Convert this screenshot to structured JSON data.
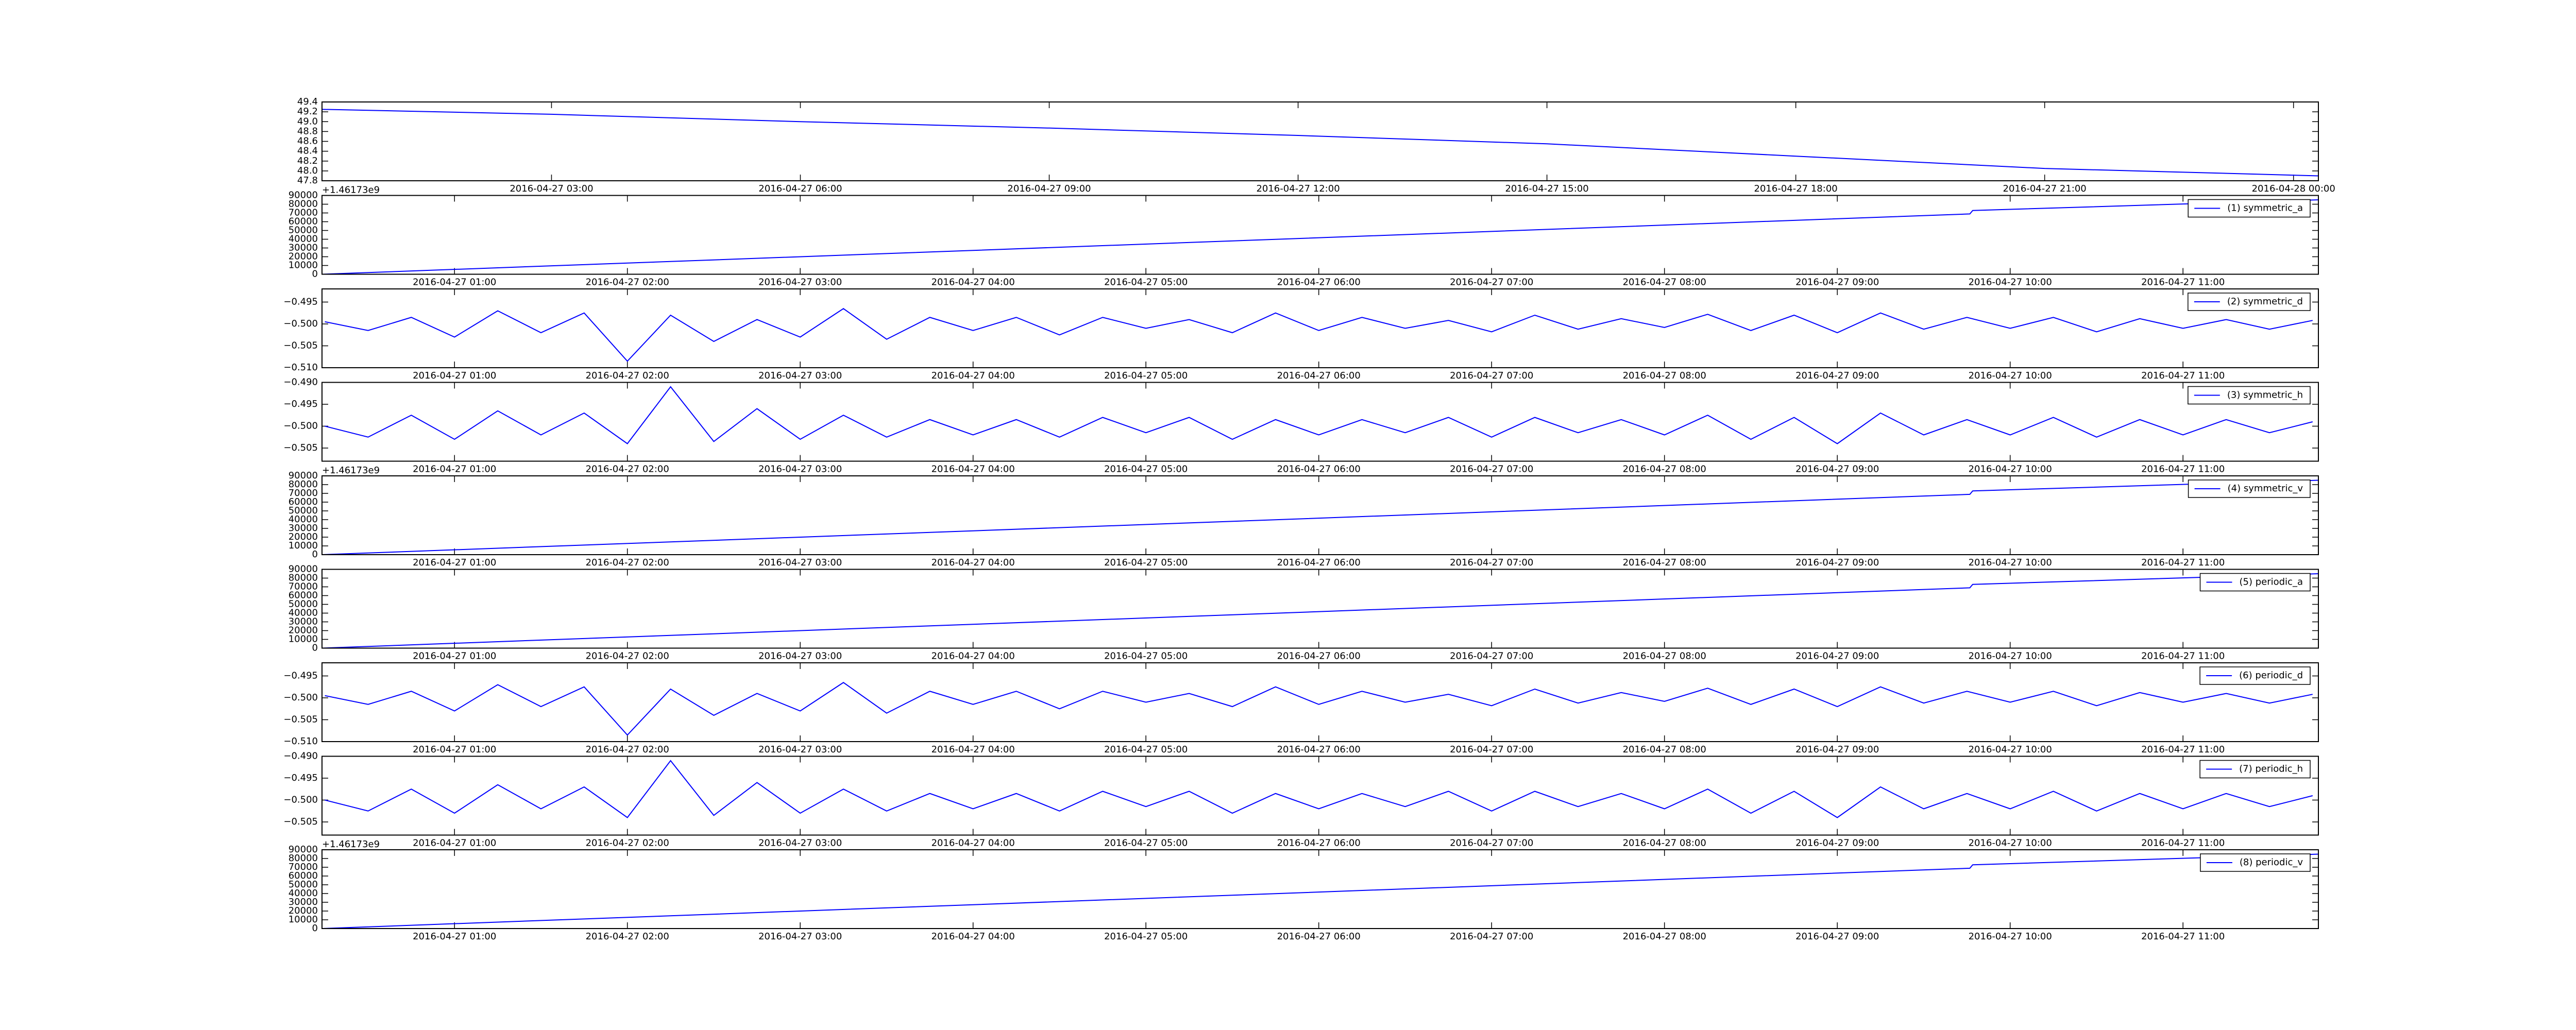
{
  "chart_data": [
    {
      "type": "line",
      "x": [
        "2016-04-27 00:14",
        "2016-04-27 03:00",
        "2016-04-27 06:00",
        "2016-04-27 09:00",
        "2016-04-27 12:00",
        "2016-04-27 15:00",
        "2016-04-27 18:00",
        "2016-04-27 21:00",
        "2016-04-28 00:18"
      ],
      "series": [
        {
          "color": "#0000ff",
          "values": [
            49.25,
            49.15,
            49.0,
            48.87,
            48.72,
            48.55,
            48.3,
            48.05,
            47.9
          ]
        }
      ],
      "xlim": [
        "2016-04-27 00:14",
        "2016-04-28 00:18"
      ],
      "xticks": [
        "2016-04-27 03:00",
        "2016-04-27 06:00",
        "2016-04-27 09:00",
        "2016-04-27 12:00",
        "2016-04-27 15:00",
        "2016-04-27 18:00",
        "2016-04-27 21:00",
        "2016-04-28 00:00"
      ],
      "ylim": [
        47.8,
        49.4
      ],
      "yticks": [
        47.8,
        {
          "value": 48.0,
          "label": "48.0"
        },
        48.2,
        48.4,
        48.6,
        48.8,
        {
          "value": 49.0,
          "label": "49.0"
        },
        49.2,
        49.4
      ]
    },
    {
      "type": "line",
      "x": [
        "2016-04-27 00:14",
        "2016-04-27 09:46",
        "2016-04-27 09:47",
        "2016-04-27 11:47"
      ],
      "series": [
        {
          "name": "(1) symmetric_a",
          "color": "#0000ff",
          "values": [
            0,
            68900,
            72800,
            85000
          ]
        }
      ],
      "xlim": [
        "2016-04-27 00:14",
        "2016-04-27 11:47"
      ],
      "xticks": [
        "2016-04-27 01:00",
        "2016-04-27 02:00",
        "2016-04-27 03:00",
        "2016-04-27 04:00",
        "2016-04-27 05:00",
        "2016-04-27 06:00",
        "2016-04-27 07:00",
        "2016-04-27 08:00",
        "2016-04-27 09:00",
        "2016-04-27 10:00",
        "2016-04-27 11:00"
      ],
      "ylim": [
        0,
        90000
      ],
      "yticks": [
        0,
        10000,
        20000,
        30000,
        40000,
        50000,
        60000,
        70000,
        80000,
        90000
      ],
      "y_offset": "+1.46173e9",
      "legend": "upper right"
    },
    {
      "type": "line",
      "x": [
        "2016-04-27 00:15",
        "2016-04-27 00:30",
        "2016-04-27 00:45",
        "2016-04-27 01:00",
        "2016-04-27 01:15",
        "2016-04-27 01:30",
        "2016-04-27 01:45",
        "2016-04-27 02:00",
        "2016-04-27 02:15",
        "2016-04-27 02:30",
        "2016-04-27 02:45",
        "2016-04-27 03:00",
        "2016-04-27 03:15",
        "2016-04-27 03:30",
        "2016-04-27 03:45",
        "2016-04-27 04:00",
        "2016-04-27 04:15",
        "2016-04-27 04:30",
        "2016-04-27 04:45",
        "2016-04-27 05:00",
        "2016-04-27 05:15",
        "2016-04-27 05:30",
        "2016-04-27 05:45",
        "2016-04-27 06:00",
        "2016-04-27 06:15",
        "2016-04-27 06:30",
        "2016-04-27 06:45",
        "2016-04-27 07:00",
        "2016-04-27 07:15",
        "2016-04-27 07:30",
        "2016-04-27 07:45",
        "2016-04-27 08:00",
        "2016-04-27 08:15",
        "2016-04-27 08:30",
        "2016-04-27 08:45",
        "2016-04-27 09:00",
        "2016-04-27 09:15",
        "2016-04-27 09:30",
        "2016-04-27 09:45",
        "2016-04-27 10:00",
        "2016-04-27 10:15",
        "2016-04-27 10:30",
        "2016-04-27 10:45",
        "2016-04-27 11:00",
        "2016-04-27 11:15",
        "2016-04-27 11:30",
        "2016-04-27 11:45"
      ],
      "series": [
        {
          "name": "(2) symmetric_d",
          "color": "#0000ff",
          "values": [
            -0.4995,
            -0.5015,
            -0.4985,
            -0.503,
            -0.497,
            -0.502,
            -0.4975,
            -0.5085,
            -0.498,
            -0.504,
            -0.499,
            -0.503,
            -0.4965,
            -0.5035,
            -0.4985,
            -0.5015,
            -0.4985,
            -0.5025,
            -0.4985,
            -0.501,
            -0.499,
            -0.502,
            -0.4975,
            -0.5015,
            -0.4985,
            -0.501,
            -0.4992,
            -0.5018,
            -0.498,
            -0.5012,
            -0.4988,
            -0.5008,
            -0.4978,
            -0.5015,
            -0.498,
            -0.502,
            -0.4975,
            -0.5012,
            -0.4985,
            -0.501,
            -0.4985,
            -0.5018,
            -0.4988,
            -0.501,
            -0.499,
            -0.5012,
            -0.4992
          ]
        }
      ],
      "xlim": [
        "2016-04-27 00:14",
        "2016-04-27 11:47"
      ],
      "xticks": [
        "2016-04-27 01:00",
        "2016-04-27 02:00",
        "2016-04-27 03:00",
        "2016-04-27 04:00",
        "2016-04-27 05:00",
        "2016-04-27 06:00",
        "2016-04-27 07:00",
        "2016-04-27 08:00",
        "2016-04-27 09:00",
        "2016-04-27 10:00",
        "2016-04-27 11:00"
      ],
      "ylim": [
        -0.51,
        -0.492
      ],
      "yticks": [
        {
          "value": -0.51,
          "label": "−0.510"
        },
        {
          "value": -0.505,
          "label": "−0.505"
        },
        {
          "value": -0.5,
          "label": "−0.500"
        },
        {
          "value": -0.495,
          "label": "−0.495"
        }
      ],
      "legend": "upper right"
    },
    {
      "type": "line",
      "x": [
        "2016-04-27 00:15",
        "2016-04-27 00:30",
        "2016-04-27 00:45",
        "2016-04-27 01:00",
        "2016-04-27 01:15",
        "2016-04-27 01:30",
        "2016-04-27 01:45",
        "2016-04-27 02:00",
        "2016-04-27 02:15",
        "2016-04-27 02:30",
        "2016-04-27 02:45",
        "2016-04-27 03:00",
        "2016-04-27 03:15",
        "2016-04-27 03:30",
        "2016-04-27 03:45",
        "2016-04-27 04:00",
        "2016-04-27 04:15",
        "2016-04-27 04:30",
        "2016-04-27 04:45",
        "2016-04-27 05:00",
        "2016-04-27 05:15",
        "2016-04-27 05:30",
        "2016-04-27 05:45",
        "2016-04-27 06:00",
        "2016-04-27 06:15",
        "2016-04-27 06:30",
        "2016-04-27 06:45",
        "2016-04-27 07:00",
        "2016-04-27 07:15",
        "2016-04-27 07:30",
        "2016-04-27 07:45",
        "2016-04-27 08:00",
        "2016-04-27 08:15",
        "2016-04-27 08:30",
        "2016-04-27 08:45",
        "2016-04-27 09:00",
        "2016-04-27 09:15",
        "2016-04-27 09:30",
        "2016-04-27 09:45",
        "2016-04-27 10:00",
        "2016-04-27 10:15",
        "2016-04-27 10:30",
        "2016-04-27 10:45",
        "2016-04-27 11:00",
        "2016-04-27 11:15",
        "2016-04-27 11:30",
        "2016-04-27 11:45"
      ],
      "series": [
        {
          "name": "(3) symmetric_h",
          "color": "#0000ff",
          "values": [
            -0.5,
            -0.5025,
            -0.4975,
            -0.503,
            -0.4965,
            -0.502,
            -0.497,
            -0.504,
            -0.491,
            -0.5035,
            -0.496,
            -0.503,
            -0.4975,
            -0.5025,
            -0.4985,
            -0.502,
            -0.4985,
            -0.5025,
            -0.498,
            -0.5015,
            -0.498,
            -0.503,
            -0.4985,
            -0.502,
            -0.4985,
            -0.5015,
            -0.498,
            -0.5025,
            -0.498,
            -0.5015,
            -0.4985,
            -0.502,
            -0.4975,
            -0.503,
            -0.498,
            -0.504,
            -0.497,
            -0.502,
            -0.4985,
            -0.502,
            -0.498,
            -0.5025,
            -0.4985,
            -0.502,
            -0.4985,
            -0.5015,
            -0.499
          ]
        }
      ],
      "xlim": [
        "2016-04-27 00:14",
        "2016-04-27 11:47"
      ],
      "xticks": [
        "2016-04-27 01:00",
        "2016-04-27 02:00",
        "2016-04-27 03:00",
        "2016-04-27 04:00",
        "2016-04-27 05:00",
        "2016-04-27 06:00",
        "2016-04-27 07:00",
        "2016-04-27 08:00",
        "2016-04-27 09:00",
        "2016-04-27 10:00",
        "2016-04-27 11:00"
      ],
      "ylim": [
        -0.508,
        -0.49
      ],
      "yticks": [
        {
          "value": -0.505,
          "label": "−0.505"
        },
        {
          "value": -0.5,
          "label": "−0.500"
        },
        {
          "value": -0.495,
          "label": "−0.495"
        },
        {
          "value": -0.49,
          "label": "−0.490"
        }
      ],
      "legend": "upper right"
    },
    {
      "type": "line",
      "x": [
        "2016-04-27 00:14",
        "2016-04-27 09:46",
        "2016-04-27 09:47",
        "2016-04-27 11:47"
      ],
      "series": [
        {
          "name": "(4) symmetric_v",
          "color": "#0000ff",
          "values": [
            0,
            68900,
            72800,
            85000
          ]
        }
      ],
      "xlim": [
        "2016-04-27 00:14",
        "2016-04-27 11:47"
      ],
      "xticks": [
        "2016-04-27 01:00",
        "2016-04-27 02:00",
        "2016-04-27 03:00",
        "2016-04-27 04:00",
        "2016-04-27 05:00",
        "2016-04-27 06:00",
        "2016-04-27 07:00",
        "2016-04-27 08:00",
        "2016-04-27 09:00",
        "2016-04-27 10:00",
        "2016-04-27 11:00"
      ],
      "ylim": [
        0,
        90000
      ],
      "yticks": [
        0,
        10000,
        20000,
        30000,
        40000,
        50000,
        60000,
        70000,
        80000,
        90000
      ],
      "y_offset": "+1.46173e9",
      "legend": "upper right"
    },
    {
      "type": "line",
      "x": [
        "2016-04-27 00:14",
        "2016-04-27 09:46",
        "2016-04-27 09:47",
        "2016-04-27 11:47"
      ],
      "series": [
        {
          "name": "(5) periodic_a",
          "color": "#0000ff",
          "values": [
            0,
            68900,
            72800,
            85000
          ]
        }
      ],
      "xlim": [
        "2016-04-27 00:14",
        "2016-04-27 11:47"
      ],
      "xticks": [
        "2016-04-27 01:00",
        "2016-04-27 02:00",
        "2016-04-27 03:00",
        "2016-04-27 04:00",
        "2016-04-27 05:00",
        "2016-04-27 06:00",
        "2016-04-27 07:00",
        "2016-04-27 08:00",
        "2016-04-27 09:00",
        "2016-04-27 10:00",
        "2016-04-27 11:00"
      ],
      "ylim": [
        0,
        90000
      ],
      "yticks": [
        0,
        10000,
        20000,
        30000,
        40000,
        50000,
        60000,
        70000,
        80000,
        90000
      ],
      "legend": "upper right"
    },
    {
      "type": "line",
      "x": [
        "2016-04-27 00:15",
        "2016-04-27 00:30",
        "2016-04-27 00:45",
        "2016-04-27 01:00",
        "2016-04-27 01:15",
        "2016-04-27 01:30",
        "2016-04-27 01:45",
        "2016-04-27 02:00",
        "2016-04-27 02:15",
        "2016-04-27 02:30",
        "2016-04-27 02:45",
        "2016-04-27 03:00",
        "2016-04-27 03:15",
        "2016-04-27 03:30",
        "2016-04-27 03:45",
        "2016-04-27 04:00",
        "2016-04-27 04:15",
        "2016-04-27 04:30",
        "2016-04-27 04:45",
        "2016-04-27 05:00",
        "2016-04-27 05:15",
        "2016-04-27 05:30",
        "2016-04-27 05:45",
        "2016-04-27 06:00",
        "2016-04-27 06:15",
        "2016-04-27 06:30",
        "2016-04-27 06:45",
        "2016-04-27 07:00",
        "2016-04-27 07:15",
        "2016-04-27 07:30",
        "2016-04-27 07:45",
        "2016-04-27 08:00",
        "2016-04-27 08:15",
        "2016-04-27 08:30",
        "2016-04-27 08:45",
        "2016-04-27 09:00",
        "2016-04-27 09:15",
        "2016-04-27 09:30",
        "2016-04-27 09:45",
        "2016-04-27 10:00",
        "2016-04-27 10:15",
        "2016-04-27 10:30",
        "2016-04-27 10:45",
        "2016-04-27 11:00",
        "2016-04-27 11:15",
        "2016-04-27 11:30",
        "2016-04-27 11:45"
      ],
      "series": [
        {
          "name": "(6) periodic_d",
          "color": "#0000ff",
          "values": [
            -0.4995,
            -0.5015,
            -0.4985,
            -0.503,
            -0.497,
            -0.502,
            -0.4975,
            -0.5085,
            -0.498,
            -0.504,
            -0.499,
            -0.503,
            -0.4965,
            -0.5035,
            -0.4985,
            -0.5015,
            -0.4985,
            -0.5025,
            -0.4985,
            -0.501,
            -0.499,
            -0.502,
            -0.4975,
            -0.5015,
            -0.4985,
            -0.501,
            -0.4992,
            -0.5018,
            -0.498,
            -0.5012,
            -0.4988,
            -0.5008,
            -0.4978,
            -0.5015,
            -0.498,
            -0.502,
            -0.4975,
            -0.5012,
            -0.4985,
            -0.501,
            -0.4985,
            -0.5018,
            -0.4988,
            -0.501,
            -0.499,
            -0.5012,
            -0.4992
          ]
        }
      ],
      "xlim": [
        "2016-04-27 00:14",
        "2016-04-27 11:47"
      ],
      "xticks": [
        "2016-04-27 01:00",
        "2016-04-27 02:00",
        "2016-04-27 03:00",
        "2016-04-27 04:00",
        "2016-04-27 05:00",
        "2016-04-27 06:00",
        "2016-04-27 07:00",
        "2016-04-27 08:00",
        "2016-04-27 09:00",
        "2016-04-27 10:00",
        "2016-04-27 11:00"
      ],
      "ylim": [
        -0.51,
        -0.492
      ],
      "yticks": [
        {
          "value": -0.51,
          "label": "−0.510"
        },
        {
          "value": -0.505,
          "label": "−0.505"
        },
        {
          "value": -0.5,
          "label": "−0.500"
        },
        {
          "value": -0.495,
          "label": "−0.495"
        }
      ],
      "legend": "upper right"
    },
    {
      "type": "line",
      "x": [
        "2016-04-27 00:15",
        "2016-04-27 00:30",
        "2016-04-27 00:45",
        "2016-04-27 01:00",
        "2016-04-27 01:15",
        "2016-04-27 01:30",
        "2016-04-27 01:45",
        "2016-04-27 02:00",
        "2016-04-27 02:15",
        "2016-04-27 02:30",
        "2016-04-27 02:45",
        "2016-04-27 03:00",
        "2016-04-27 03:15",
        "2016-04-27 03:30",
        "2016-04-27 03:45",
        "2016-04-27 04:00",
        "2016-04-27 04:15",
        "2016-04-27 04:30",
        "2016-04-27 04:45",
        "2016-04-27 05:00",
        "2016-04-27 05:15",
        "2016-04-27 05:30",
        "2016-04-27 05:45",
        "2016-04-27 06:00",
        "2016-04-27 06:15",
        "2016-04-27 06:30",
        "2016-04-27 06:45",
        "2016-04-27 07:00",
        "2016-04-27 07:15",
        "2016-04-27 07:30",
        "2016-04-27 07:45",
        "2016-04-27 08:00",
        "2016-04-27 08:15",
        "2016-04-27 08:30",
        "2016-04-27 08:45",
        "2016-04-27 09:00",
        "2016-04-27 09:15",
        "2016-04-27 09:30",
        "2016-04-27 09:45",
        "2016-04-27 10:00",
        "2016-04-27 10:15",
        "2016-04-27 10:30",
        "2016-04-27 10:45",
        "2016-04-27 11:00",
        "2016-04-27 11:15",
        "2016-04-27 11:30",
        "2016-04-27 11:45"
      ],
      "series": [
        {
          "name": "(7) periodic_h",
          "color": "#0000ff",
          "values": [
            -0.5,
            -0.5025,
            -0.4975,
            -0.503,
            -0.4965,
            -0.502,
            -0.497,
            -0.504,
            -0.491,
            -0.5035,
            -0.496,
            -0.503,
            -0.4975,
            -0.5025,
            -0.4985,
            -0.502,
            -0.4985,
            -0.5025,
            -0.498,
            -0.5015,
            -0.498,
            -0.503,
            -0.4985,
            -0.502,
            -0.4985,
            -0.5015,
            -0.498,
            -0.5025,
            -0.498,
            -0.5015,
            -0.4985,
            -0.502,
            -0.4975,
            -0.503,
            -0.498,
            -0.504,
            -0.497,
            -0.502,
            -0.4985,
            -0.502,
            -0.498,
            -0.5025,
            -0.4985,
            -0.502,
            -0.4985,
            -0.5015,
            -0.499
          ]
        }
      ],
      "xlim": [
        "2016-04-27 00:14",
        "2016-04-27 11:47"
      ],
      "xticks": [
        "2016-04-27 01:00",
        "2016-04-27 02:00",
        "2016-04-27 03:00",
        "2016-04-27 04:00",
        "2016-04-27 05:00",
        "2016-04-27 06:00",
        "2016-04-27 07:00",
        "2016-04-27 08:00",
        "2016-04-27 09:00",
        "2016-04-27 10:00",
        "2016-04-27 11:00"
      ],
      "ylim": [
        -0.508,
        -0.49
      ],
      "yticks": [
        {
          "value": -0.505,
          "label": "−0.505"
        },
        {
          "value": -0.5,
          "label": "−0.500"
        },
        {
          "value": -0.495,
          "label": "−0.495"
        },
        {
          "value": -0.49,
          "label": "−0.490"
        }
      ],
      "legend": "upper right"
    },
    {
      "type": "line",
      "x": [
        "2016-04-27 00:14",
        "2016-04-27 09:46",
        "2016-04-27 09:47",
        "2016-04-27 11:47"
      ],
      "series": [
        {
          "name": "(8) periodic_v",
          "color": "#0000ff",
          "values": [
            0,
            68900,
            72800,
            85000
          ]
        }
      ],
      "xlim": [
        "2016-04-27 00:14",
        "2016-04-27 11:47"
      ],
      "xticks": [
        "2016-04-27 01:00",
        "2016-04-27 02:00",
        "2016-04-27 03:00",
        "2016-04-27 04:00",
        "2016-04-27 05:00",
        "2016-04-27 06:00",
        "2016-04-27 07:00",
        "2016-04-27 08:00",
        "2016-04-27 09:00",
        "2016-04-27 10:00",
        "2016-04-27 11:00"
      ],
      "ylim": [
        0,
        90000
      ],
      "yticks": [
        0,
        10000,
        20000,
        30000,
        40000,
        50000,
        60000,
        70000,
        80000,
        90000
      ],
      "y_offset": "+1.46173e9",
      "legend": "upper right"
    }
  ]
}
